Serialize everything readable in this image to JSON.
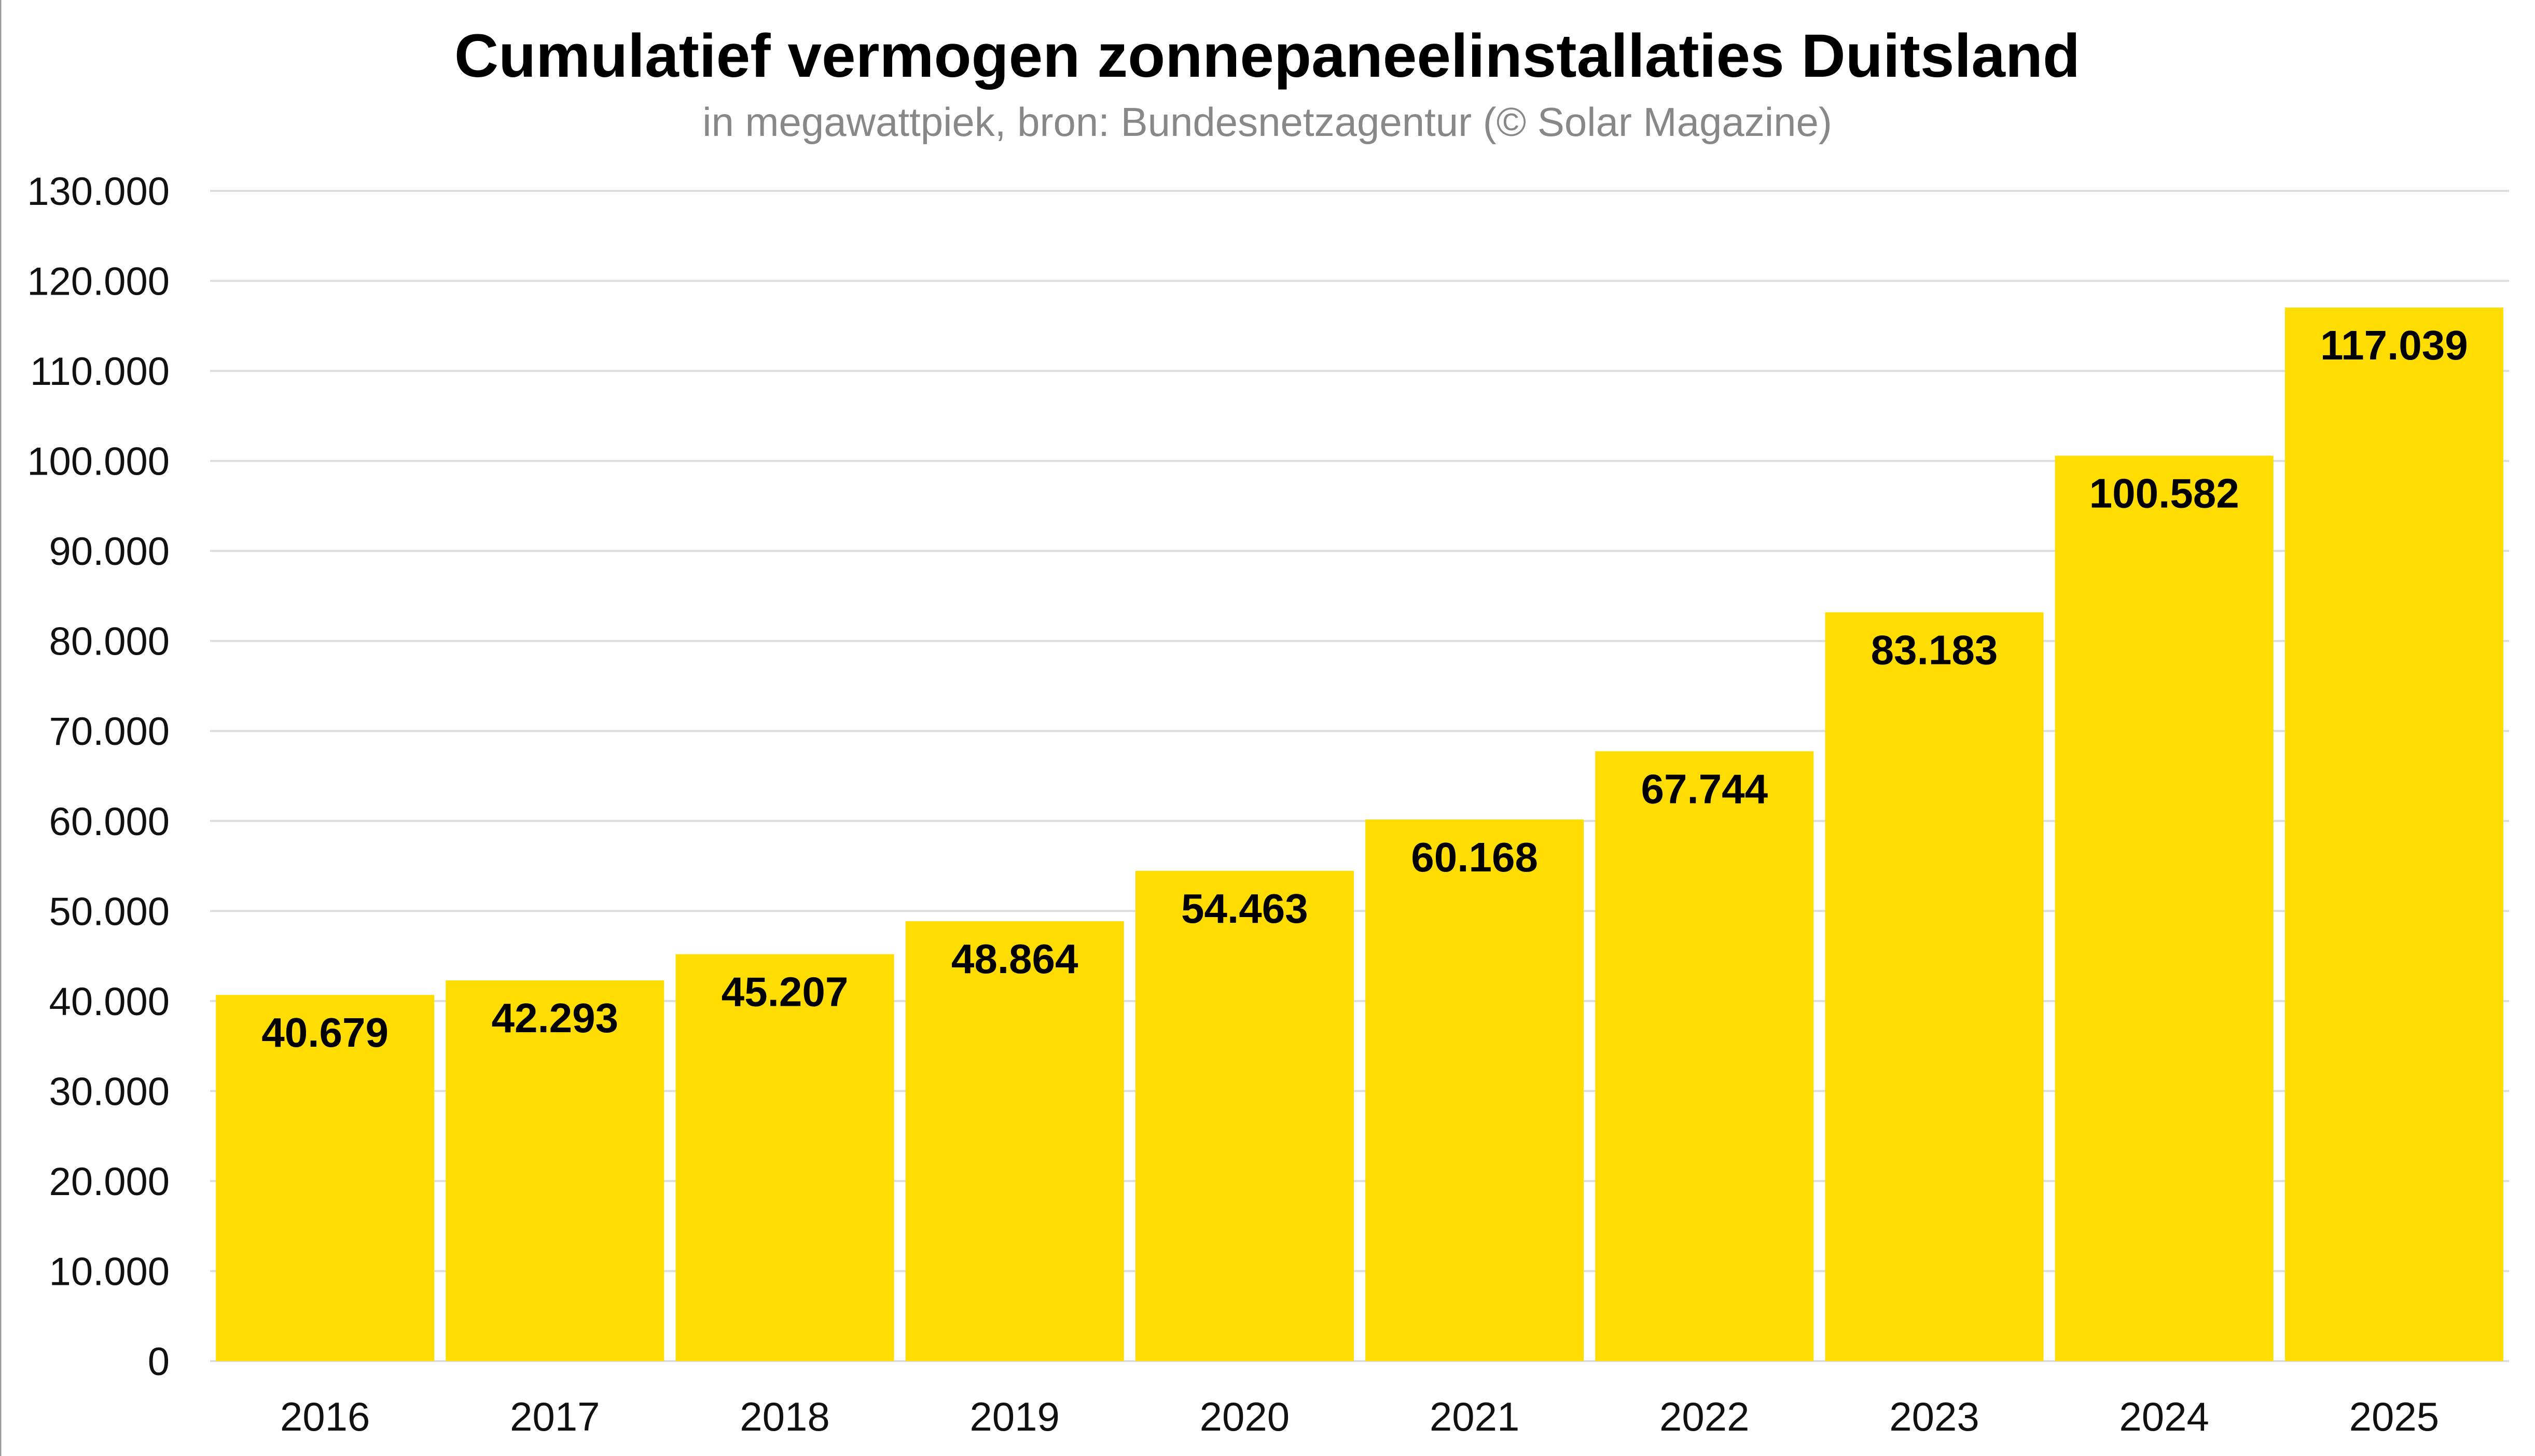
{
  "chart_data": {
    "type": "bar",
    "title": "Cumulatief vermogen zonnepaneelinstallaties Duitsland",
    "subtitle": "in megawattpiek, bron: Bundesnetzagentur (© Solar Magazine)",
    "xlabel": "",
    "ylabel": "",
    "categories": [
      "2016",
      "2017",
      "2018",
      "2019",
      "2020",
      "2021",
      "2022",
      "2023",
      "2024",
      "2025"
    ],
    "values": [
      40679,
      42293,
      45207,
      48864,
      54463,
      60168,
      67744,
      83183,
      100582,
      117039
    ],
    "value_labels": [
      "40.679",
      "42.293",
      "45.207",
      "48.864",
      "54.463",
      "60.168",
      "67.744",
      "83.183",
      "100.582",
      "117.039"
    ],
    "ylim": [
      0,
      130000
    ],
    "yticks": [
      0,
      10000,
      20000,
      30000,
      40000,
      50000,
      60000,
      70000,
      80000,
      90000,
      100000,
      110000,
      120000,
      130000
    ],
    "ytick_labels": [
      "0",
      "10.000",
      "20.000",
      "30.000",
      "40.000",
      "50.000",
      "60.000",
      "70.000",
      "80.000",
      "90.000",
      "100.000",
      "110.000",
      "120.000",
      "130.000"
    ],
    "grid": true,
    "legend": "none",
    "bar_color": "#FFDD00",
    "grid_color": "#DDDDDD"
  }
}
